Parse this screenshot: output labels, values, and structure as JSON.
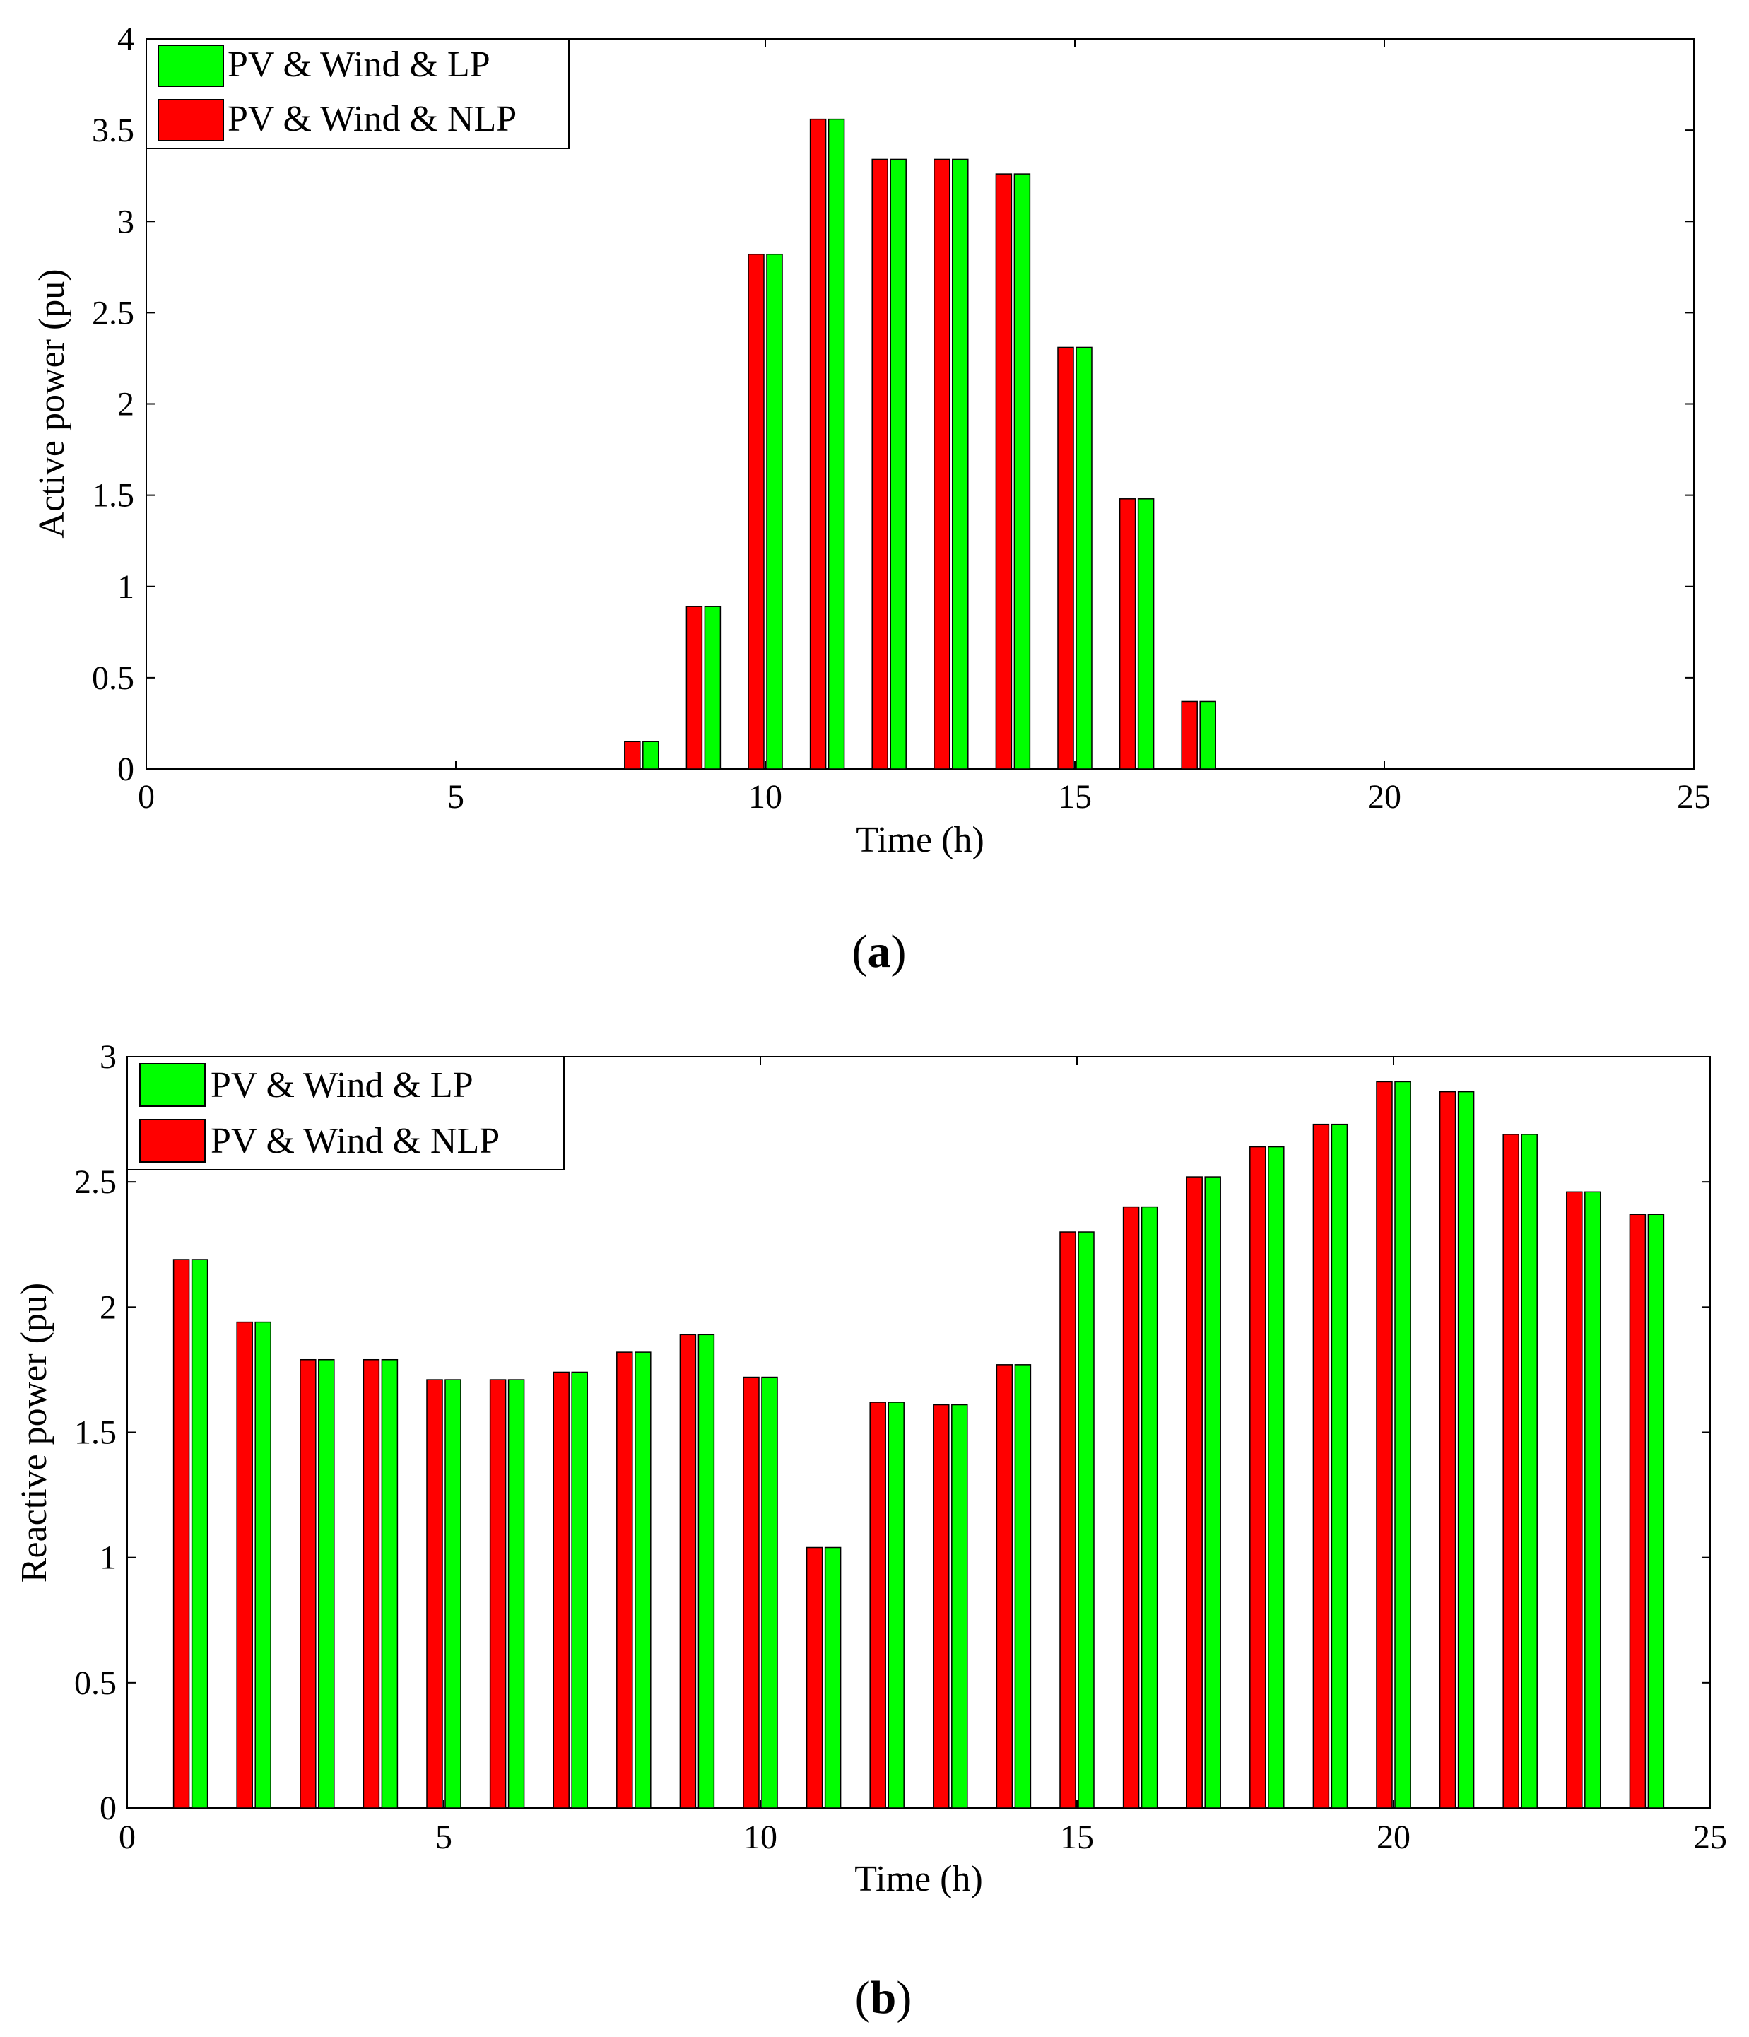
{
  "colors": {
    "lp": "#00ff00",
    "nlp": "#ff0000",
    "axis": "#000000"
  },
  "chart_data": [
    {
      "type": "bar",
      "caption_letter": "a",
      "xlabel": "Time (h)",
      "ylabel": "Active power (pu)",
      "xlim": [
        0,
        25
      ],
      "ylim": [
        0,
        4
      ],
      "xticks": [
        0,
        5,
        10,
        15,
        20,
        25
      ],
      "xtick_labels": [
        "0",
        "5",
        "10",
        "15",
        "20",
        "25"
      ],
      "yticks": [
        0,
        0.5,
        1,
        1.5,
        2,
        2.5,
        3,
        3.5,
        4
      ],
      "ytick_labels": [
        "0",
        "0.5",
        "1",
        "1.5",
        "2",
        "2.5",
        "3",
        "3.5",
        "4"
      ],
      "grid": false,
      "legend_position": "top-left",
      "x": [
        8,
        9,
        10,
        11,
        12,
        13,
        14,
        15,
        16,
        17
      ],
      "series": [
        {
          "name": "PV & Wind & LP",
          "color": "#00ff00",
          "values": [
            0.15,
            0.89,
            2.82,
            3.56,
            3.34,
            3.34,
            3.26,
            2.31,
            1.48,
            0.37
          ]
        },
        {
          "name": "PV & Wind & NLP",
          "color": "#ff0000",
          "values": [
            0.15,
            0.89,
            2.82,
            3.56,
            3.34,
            3.34,
            3.26,
            2.31,
            1.48,
            0.37
          ]
        }
      ]
    },
    {
      "type": "bar",
      "caption_letter": "b",
      "xlabel": "Time (h)",
      "ylabel": "Reactive power (pu)",
      "xlim": [
        0,
        25
      ],
      "ylim": [
        0,
        3
      ],
      "xticks": [
        0,
        5,
        10,
        15,
        20,
        25
      ],
      "xtick_labels": [
        "0",
        "5",
        "10",
        "15",
        "20",
        "25"
      ],
      "yticks": [
        0,
        0.5,
        1,
        1.5,
        2,
        2.5,
        3
      ],
      "ytick_labels": [
        "0",
        "0.5",
        "1",
        "1.5",
        "2",
        "2.5",
        "3"
      ],
      "grid": false,
      "legend_position": "top-left",
      "x": [
        1,
        2,
        3,
        4,
        5,
        6,
        7,
        8,
        9,
        10,
        11,
        12,
        13,
        14,
        15,
        16,
        17,
        18,
        19,
        20,
        21,
        22,
        23,
        24
      ],
      "series": [
        {
          "name": "PV & Wind & LP",
          "color": "#00ff00",
          "values": [
            2.19,
            1.94,
            1.79,
            1.79,
            1.71,
            1.71,
            1.74,
            1.82,
            1.89,
            1.72,
            1.04,
            1.62,
            1.61,
            1.77,
            2.3,
            2.4,
            2.52,
            2.64,
            2.73,
            2.9,
            2.86,
            2.69,
            2.46,
            2.37
          ]
        },
        {
          "name": "PV & Wind & NLP",
          "color": "#ff0000",
          "values": [
            2.19,
            1.94,
            1.79,
            1.79,
            1.71,
            1.71,
            1.74,
            1.82,
            1.89,
            1.72,
            1.04,
            1.62,
            1.61,
            1.77,
            2.3,
            2.4,
            2.52,
            2.64,
            2.73,
            2.9,
            2.86,
            2.69,
            2.46,
            2.37
          ]
        }
      ]
    }
  ]
}
